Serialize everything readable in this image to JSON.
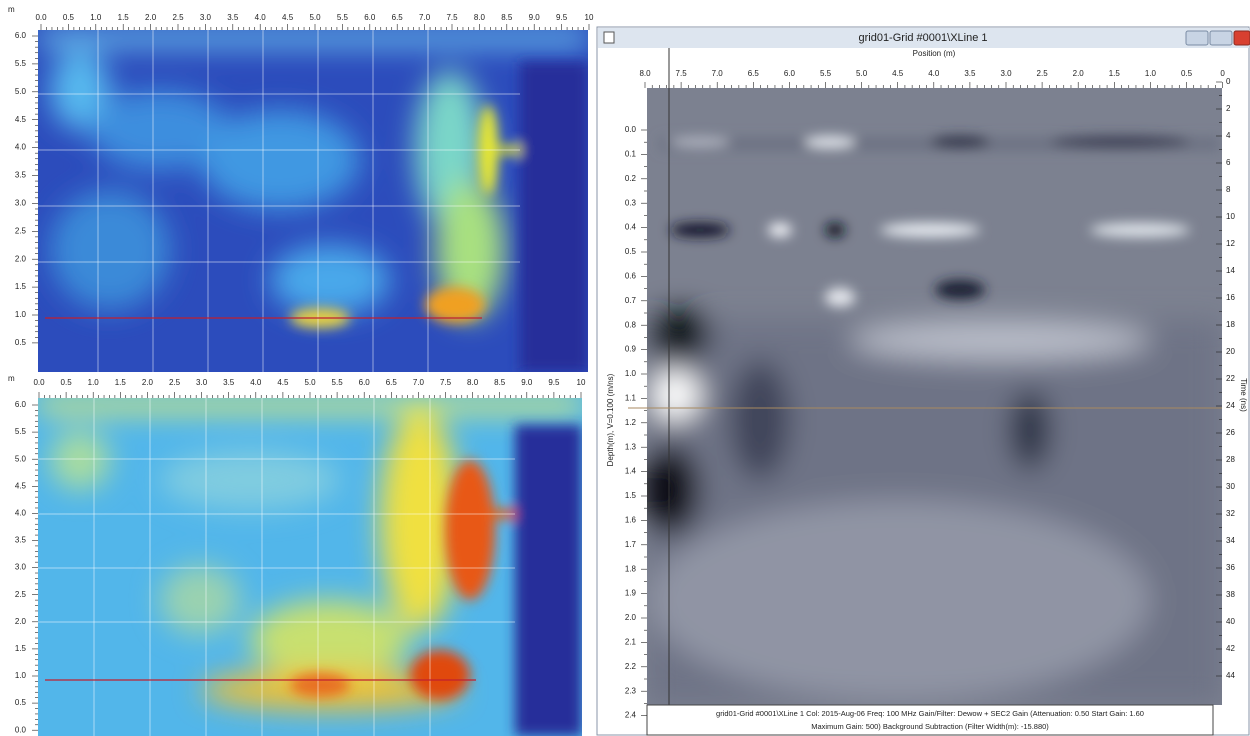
{
  "left_top": {
    "unit": "m",
    "x_ticks": [
      "0.0",
      "0.5",
      "1.0",
      "1.5",
      "2.0",
      "2.5",
      "3.0",
      "3.5",
      "4.0",
      "4.5",
      "5.0",
      "5.5",
      "6.0",
      "6.5",
      "7.0",
      "7.5",
      "8.0",
      "8.5",
      "9.0",
      "9.5",
      "10"
    ],
    "y_ticks": [
      "6.0",
      "5.5",
      "5.0",
      "4.5",
      "4.0",
      "3.5",
      "3.0",
      "2.5",
      "2.0",
      "1.5",
      "1.0",
      "0.5"
    ]
  },
  "left_bottom": {
    "unit": "m",
    "x_ticks": [
      "0.0",
      "0.5",
      "1.0",
      "1.5",
      "2.0",
      "2.5",
      "3.0",
      "3.5",
      "4.0",
      "4.5",
      "5.0",
      "5.5",
      "6.0",
      "6.5",
      "7.0",
      "7.5",
      "8.0",
      "8.5",
      "9.0",
      "9.5",
      "10"
    ],
    "y_ticks": [
      "6.0",
      "5.5",
      "5.0",
      "4.5",
      "4.0",
      "3.5",
      "3.0",
      "2.5",
      "2.0",
      "1.5",
      "1.0",
      "0.5",
      "0.0"
    ]
  },
  "window": {
    "title": "grid01-Grid #0001\\XLine 1",
    "x_axis_label": "Position (m)",
    "x_ticks": [
      "8.0",
      "7.5",
      "7.0",
      "6.5",
      "6.0",
      "5.5",
      "5.0",
      "4.5",
      "4.0",
      "3.5",
      "3.0",
      "2.5",
      "2.0",
      "1.5",
      "1.0",
      "0.5",
      "0"
    ],
    "y_axis_label": "Depth(m), V=0.100 (m/ns)",
    "y_ticks": [
      "0.0",
      "0.1",
      "0.2",
      "0.3",
      "0.4",
      "0.5",
      "0.6",
      "0.7",
      "0.8",
      "0.9",
      "1.0",
      "1.1",
      "1.2",
      "1.3",
      "1.4",
      "1.5",
      "1.6",
      "1.7",
      "1.8",
      "1.9",
      "2.0",
      "2.1",
      "2.2",
      "2.3",
      "2.4"
    ],
    "y2_axis_label": "Time (ns)",
    "y2_ticks": [
      "0",
      "2",
      "4",
      "6",
      "8",
      "10",
      "12",
      "14",
      "16",
      "18",
      "20",
      "22",
      "24",
      "26",
      "28",
      "30",
      "32",
      "34",
      "36",
      "38",
      "40",
      "42",
      "44"
    ],
    "footer": [
      "grid01-Grid #0001\\XLine 1  Col: 2015-Aug-06 Freq: 100 MHz Gain/Filter: Dewow + SEC2 Gain (Attenuation: 0.50 Start Gain: 1.60",
      "Maximum Gain: 500) Background Subtraction (Filter Width(m): -15.880)"
    ]
  }
}
